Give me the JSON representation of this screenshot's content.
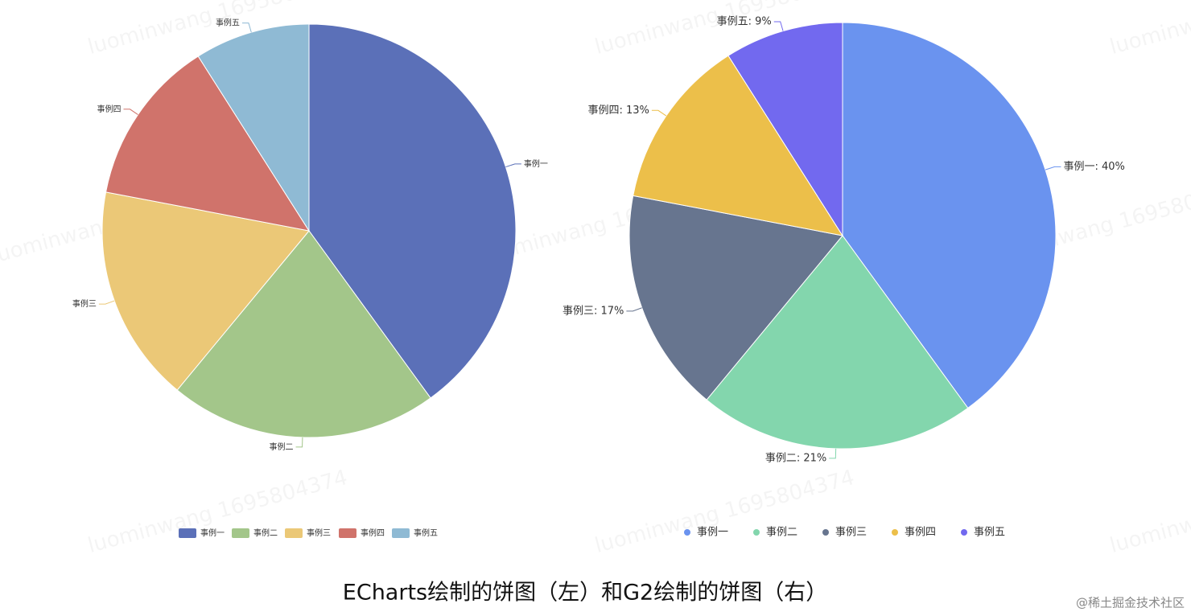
{
  "chart_data": [
    {
      "type": "pie",
      "categories": [
        "事例一",
        "事例二",
        "事例三",
        "事例四",
        "事例五"
      ],
      "values": [
        40,
        21,
        17,
        13,
        9
      ],
      "colors": [
        "#5b70b8",
        "#a3c68a",
        "#ebc877",
        "#d0736b",
        "#8fbad4"
      ],
      "legend": "bottom",
      "legend_marker": "rect"
    },
    {
      "type": "pie",
      "categories": [
        "事例一",
        "事例二",
        "事例三",
        "事例四",
        "事例五"
      ],
      "values": [
        40,
        21,
        17,
        13,
        9
      ],
      "value_labels": [
        "事例一: 40%",
        "事例二: 21%",
        "事例三: 17%",
        "事例四: 13%",
        "事例五: 9%"
      ],
      "colors": [
        "#6a93ef",
        "#83d6ad",
        "#67758f",
        "#ecbf4a",
        "#7269ef"
      ],
      "legend": "bottom",
      "legend_marker": "circle"
    }
  ],
  "caption": "ECharts绘制的饼图（左）和G2绘制的饼图（右）",
  "watermark": "luominwang 1695804374",
  "credit": "@稀土掘金技术社区"
}
